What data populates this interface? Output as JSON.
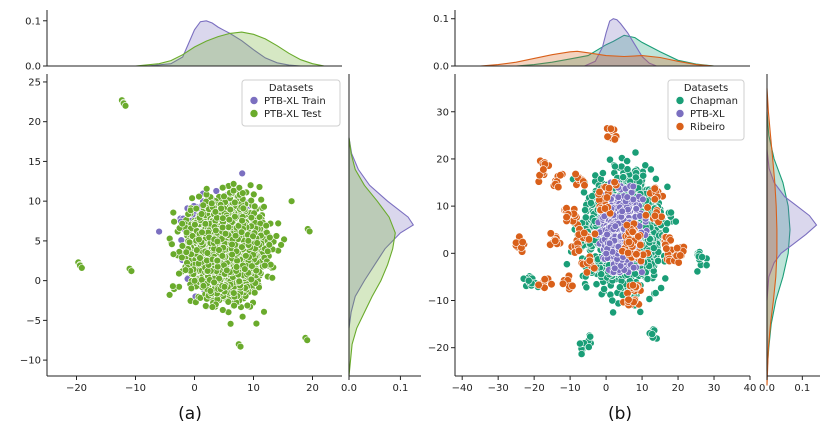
{
  "chart_data": [
    {
      "type": "scatter",
      "caption": "(a)",
      "xlim": [
        -25,
        25
      ],
      "ylim": [
        -12,
        26
      ],
      "x_ticks": [
        -20,
        -10,
        0,
        10,
        20
      ],
      "y_ticks": [
        -10,
        -5,
        0,
        5,
        10,
        15,
        20,
        25
      ],
      "top_kde": {
        "ylim": [
          0,
          0.115
        ],
        "ticks": [
          0.0,
          0.1
        ],
        "tick_labels": [
          "0.0",
          "0.1"
        ]
      },
      "right_kde": {
        "xlim": [
          0,
          0.14
        ],
        "ticks": [
          0.0,
          0.1
        ],
        "tick_labels": [
          "0.0",
          "0.1"
        ]
      },
      "legend": {
        "title": "Datasets",
        "position": "top-right"
      },
      "series": [
        {
          "name": "PTB-XL Train",
          "color": "#7b6fc0",
          "cluster": {
            "center": [
              4,
              5
            ],
            "spread": [
              4.5,
              4.5
            ],
            "x_range": [
              -6,
              13
            ],
            "y_range": [
              -2,
              15
            ]
          },
          "kde_x": {
            "x": [
              -8,
              -4,
              -2,
              -1,
              0,
              1,
              2,
              3,
              4,
              5,
              6,
              8,
              10,
              12,
              14,
              16,
              18
            ],
            "y": [
              0.0,
              0.005,
              0.02,
              0.05,
              0.08,
              0.098,
              0.1,
              0.095,
              0.086,
              0.079,
              0.072,
              0.056,
              0.036,
              0.018,
              0.007,
              0.002,
              0.0
            ]
          },
          "kde_y": {
            "y": [
              -6,
              -4,
              -2,
              0,
              2,
              4,
              6,
              7,
              8,
              10,
              12,
              14,
              16,
              18
            ],
            "x": [
              0.0,
              0.004,
              0.012,
              0.03,
              0.05,
              0.07,
              0.1,
              0.125,
              0.115,
              0.075,
              0.04,
              0.018,
              0.005,
              0.0
            ]
          }
        },
        {
          "name": "PTB-XL Test",
          "color": "#6aab2c",
          "cluster": {
            "center": [
              5.5,
              4
            ],
            "spread": [
              5.5,
              5
            ],
            "x_range": [
              -9,
              20
            ],
            "y_range": [
              -8,
              17
            ]
          },
          "outliers": [
            [
              -12.3,
              22.7
            ],
            [
              -12.0,
              22.3
            ],
            [
              -19.7,
              2.3
            ],
            [
              -19.4,
              1.9
            ],
            [
              -11,
              1.5
            ],
            [
              19.2,
              6.5
            ],
            [
              18.8,
              -7.2
            ],
            [
              7.5,
              -8.0
            ]
          ],
          "kde_x": {
            "x": [
              -10,
              -6,
              -4,
              -2,
              0,
              2,
              4,
              6,
              8,
              10,
              12,
              14,
              16,
              18,
              20,
              22
            ],
            "y": [
              0.0,
              0.005,
              0.012,
              0.025,
              0.042,
              0.055,
              0.065,
              0.072,
              0.075,
              0.07,
              0.06,
              0.045,
              0.028,
              0.014,
              0.005,
              0.0
            ]
          },
          "kde_y": {
            "y": [
              -12,
              -8,
              -6,
              -4,
              -2,
              0,
              2,
              4,
              6,
              8,
              10,
              12,
              14,
              16,
              18
            ],
            "x": [
              0.0,
              0.006,
              0.015,
              0.03,
              0.045,
              0.062,
              0.075,
              0.085,
              0.09,
              0.078,
              0.055,
              0.03,
              0.012,
              0.004,
              0.0
            ]
          }
        }
      ]
    },
    {
      "type": "scatter",
      "caption": "(b)",
      "xlim": [
        -42,
        40
      ],
      "ylim": [
        -26,
        38
      ],
      "x_ticks": [
        -40,
        -30,
        -20,
        -10,
        0,
        10,
        20,
        30,
        40
      ],
      "x_tick_labels": [
        "−40",
        "−30",
        "−20",
        "−10",
        "0",
        "10",
        "20",
        "30",
        "40"
      ],
      "y_ticks": [
        -20,
        -10,
        0,
        10,
        20,
        30
      ],
      "top_kde": {
        "ylim": [
          0,
          0.11
        ],
        "ticks": [
          0.0,
          0.1
        ],
        "tick_labels": [
          "0.0",
          "0.1"
        ]
      },
      "right_kde": {
        "xlim": [
          0,
          0.15
        ],
        "ticks": [
          0.0,
          0.1
        ],
        "tick_labels": [
          "0.0",
          "0.1"
        ]
      },
      "legend": {
        "title": "Datasets",
        "position": "top-right"
      },
      "series": [
        {
          "name": "Chapman",
          "color": "#1a9e77",
          "cluster": {
            "center": [
              5,
              5
            ],
            "spread": [
              8,
              9
            ],
            "x_range": [
              -20,
              28
            ],
            "y_range": [
              -14,
              24
            ]
          },
          "extra_clusters": [
            [
              -6,
              -19,
              2
            ],
            [
              -21,
              -6,
              1.5
            ],
            [
              26,
              -1,
              1.5
            ],
            [
              13,
              -17,
              1
            ]
          ],
          "kde_x": {
            "x": [
              -25,
              -20,
              -15,
              -10,
              -5,
              0,
              2,
              5,
              8,
              10,
              15,
              20,
              25,
              30
            ],
            "y": [
              0.0,
              0.003,
              0.008,
              0.015,
              0.022,
              0.045,
              0.052,
              0.065,
              0.06,
              0.05,
              0.03,
              0.012,
              0.004,
              0.0
            ]
          },
          "kde_y": {
            "y": [
              -25,
              -20,
              -15,
              -10,
              -5,
              0,
              5,
              10,
              15,
              20,
              25,
              30
            ],
            "x": [
              0.0,
              0.005,
              0.012,
              0.025,
              0.045,
              0.06,
              0.065,
              0.06,
              0.045,
              0.02,
              0.005,
              0.0
            ]
          }
        },
        {
          "name": "PTB-XL",
          "color": "#7b6fc0",
          "cluster": {
            "center": [
              4,
              5
            ],
            "spread": [
              4,
              6
            ],
            "x_range": [
              -4,
              12
            ],
            "y_range": [
              -4,
              15
            ]
          },
          "kde_x": {
            "x": [
              -6,
              -3,
              -1,
              0,
              1,
              2,
              3,
              4,
              6,
              8,
              10,
              12,
              14
            ],
            "y": [
              0.0,
              0.01,
              0.04,
              0.07,
              0.095,
              0.1,
              0.098,
              0.09,
              0.07,
              0.045,
              0.02,
              0.006,
              0.0
            ]
          },
          "kde_y": {
            "y": [
              -10,
              -5,
              -2,
              0,
              2,
              4,
              6,
              8,
              10,
              12,
              15,
              18,
              22
            ],
            "x": [
              0.0,
              0.005,
              0.02,
              0.04,
              0.075,
              0.11,
              0.14,
              0.12,
              0.085,
              0.05,
              0.02,
              0.006,
              0.0
            ]
          }
        },
        {
          "name": "Ribeiro",
          "color": "#d9601a",
          "cluster_centers": [
            [
              -24,
              1.5
            ],
            [
              -17,
              -6.5
            ],
            [
              -11,
              -6
            ],
            [
              -14,
              3
            ],
            [
              -8,
              1
            ],
            [
              -17,
              17.5
            ],
            [
              -14,
              15
            ],
            [
              -9,
              7
            ],
            [
              -10,
              9
            ],
            [
              -7,
              15
            ],
            [
              -6,
              4
            ],
            [
              -5,
              -2
            ],
            [
              -1,
              10
            ],
            [
              0,
              13.5
            ],
            [
              2,
              25.5
            ],
            [
              6,
              1
            ],
            [
              7,
              5
            ],
            [
              8,
              3
            ],
            [
              9,
              -0.5
            ],
            [
              8,
              -7
            ],
            [
              7,
              -10
            ],
            [
              14,
              8
            ],
            [
              14,
              13
            ],
            [
              17,
              2.5
            ],
            [
              18,
              -1
            ],
            [
              21,
              1
            ]
          ],
          "kde_x": {
            "x": [
              -35,
              -30,
              -25,
              -20,
              -15,
              -10,
              -8,
              -5,
              0,
              5,
              10,
              15,
              20,
              25,
              30
            ],
            "y": [
              0.0,
              0.003,
              0.008,
              0.016,
              0.024,
              0.03,
              0.031,
              0.028,
              0.022,
              0.02,
              0.022,
              0.018,
              0.01,
              0.003,
              0.0
            ]
          },
          "kde_y": {
            "y": [
              -28,
              -20,
              -15,
              -10,
              -5,
              0,
              5,
              10,
              15,
              20,
              25,
              30,
              35
            ],
            "x": [
              0.0,
              0.004,
              0.01,
              0.018,
              0.025,
              0.028,
              0.028,
              0.026,
              0.022,
              0.016,
              0.01,
              0.004,
              0.0
            ]
          }
        }
      ]
    }
  ]
}
